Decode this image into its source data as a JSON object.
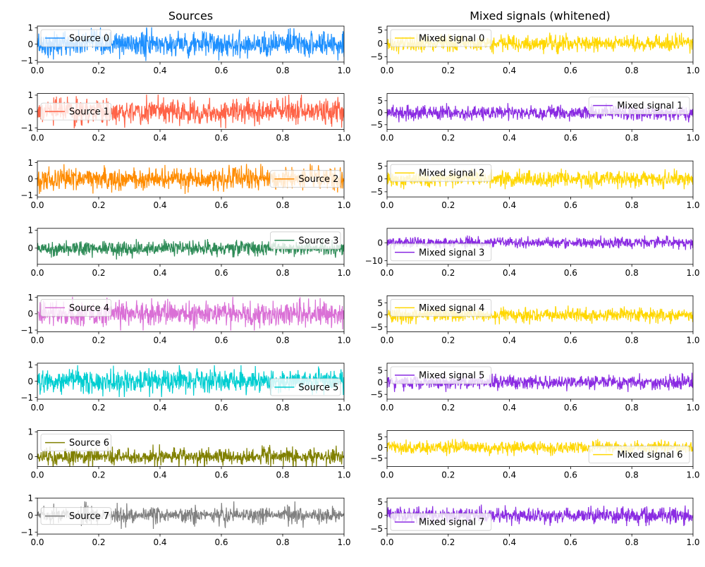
{
  "column_titles": [
    "Sources",
    "Mixed signals (whitened)"
  ],
  "chart_data": [
    {
      "type": "line",
      "title": "Sources",
      "panel": 0,
      "series": [
        {
          "name": "Source 0",
          "color": "#1e90ff",
          "amp": 0.9
        }
      ],
      "xlim": [
        0,
        1
      ],
      "ylim": [
        -1.1,
        1.1
      ],
      "xticks": [
        0.0,
        0.2,
        0.4,
        0.6,
        0.8,
        1.0
      ],
      "yticks": [
        -1,
        0,
        1
      ],
      "legend": "upper left"
    },
    {
      "type": "line",
      "panel": 1,
      "series": [
        {
          "name": "Source 1",
          "color": "#ff6347",
          "amp": 0.9
        }
      ],
      "xlim": [
        0,
        1
      ],
      "ylim": [
        -1.1,
        1.1
      ],
      "xticks": [
        0.0,
        0.2,
        0.4,
        0.6,
        0.8,
        1.0
      ],
      "yticks": [
        -1,
        0,
        1
      ],
      "legend": "center left"
    },
    {
      "type": "line",
      "panel": 2,
      "series": [
        {
          "name": "Source 2",
          "color": "#ff8c00",
          "amp": 0.8
        }
      ],
      "xlim": [
        0,
        1
      ],
      "ylim": [
        -1.1,
        1.1
      ],
      "xticks": [
        0.0,
        0.2,
        0.4,
        0.6,
        0.8,
        1.0
      ],
      "yticks": [
        -1,
        0,
        1
      ],
      "legend": "center right"
    },
    {
      "type": "line",
      "panel": 3,
      "series": [
        {
          "name": "Source 3",
          "color": "#2e8b57",
          "amp": 0.55
        }
      ],
      "xlim": [
        0,
        1
      ],
      "ylim": [
        -0.9,
        1.1
      ],
      "xticks": [
        0.0,
        0.2,
        0.4,
        0.6,
        0.8,
        1.0
      ],
      "yticks": [
        0,
        1
      ],
      "legend": "upper right"
    },
    {
      "type": "line",
      "panel": 4,
      "series": [
        {
          "name": "Source 4",
          "color": "#da70d6",
          "amp": 0.9
        }
      ],
      "xlim": [
        0,
        1
      ],
      "ylim": [
        -1.1,
        1.1
      ],
      "xticks": [
        0.0,
        0.2,
        0.4,
        0.6,
        0.8,
        1.0
      ],
      "yticks": [
        -1,
        0,
        1
      ],
      "legend": "upper left"
    },
    {
      "type": "line",
      "panel": 5,
      "series": [
        {
          "name": "Source 5",
          "color": "#00ced1",
          "amp": 0.85
        }
      ],
      "xlim": [
        0,
        1
      ],
      "ylim": [
        -1.1,
        1.1
      ],
      "xticks": [
        0.0,
        0.2,
        0.4,
        0.6,
        0.8,
        1.0
      ],
      "yticks": [
        -1,
        0,
        1
      ],
      "legend": "lower right"
    },
    {
      "type": "line",
      "panel": 6,
      "series": [
        {
          "name": "Source 6",
          "color": "#808000",
          "amp": 0.5
        }
      ],
      "xlim": [
        0,
        1
      ],
      "ylim": [
        -0.4,
        1.05
      ],
      "xticks": [
        0.0,
        0.2,
        0.4,
        0.6,
        0.8,
        1.0
      ],
      "yticks": [
        0,
        1
      ],
      "legend": "upper left"
    },
    {
      "type": "line",
      "panel": 7,
      "series": [
        {
          "name": "Source 7",
          "color": "#808080",
          "amp": 0.7
        }
      ],
      "xlim": [
        0,
        1
      ],
      "ylim": [
        -1.1,
        1.0
      ],
      "xticks": [
        0.0,
        0.2,
        0.4,
        0.6,
        0.8,
        1.0
      ],
      "yticks": [
        -1,
        0,
        1
      ],
      "legend": "center left"
    },
    {
      "type": "line",
      "title": "Mixed signals (whitened)",
      "panel": 8,
      "series": [
        {
          "name": "Mixed signal 0",
          "color": "#ffd700",
          "amp": 3.5
        }
      ],
      "xlim": [
        0,
        1
      ],
      "ylim": [
        -7,
        6.5
      ],
      "xticks": [
        0.0,
        0.2,
        0.4,
        0.6,
        0.8,
        1.0
      ],
      "yticks": [
        -5,
        0,
        5
      ],
      "legend": "upper left"
    },
    {
      "type": "line",
      "panel": 9,
      "series": [
        {
          "name": "Mixed signal 1",
          "color": "#8a2be2",
          "amp": 3.5
        }
      ],
      "xlim": [
        0,
        1
      ],
      "ylim": [
        -7,
        8
      ],
      "xticks": [
        0.0,
        0.2,
        0.4,
        0.6,
        0.8,
        1.0
      ],
      "yticks": [
        -5,
        0,
        5
      ],
      "legend": "upper right"
    },
    {
      "type": "line",
      "panel": 10,
      "series": [
        {
          "name": "Mixed signal 2",
          "color": "#ffd700",
          "amp": 3.5
        }
      ],
      "xlim": [
        0,
        1
      ],
      "ylim": [
        -7,
        7
      ],
      "xticks": [
        0.0,
        0.2,
        0.4,
        0.6,
        0.8,
        1.0
      ],
      "yticks": [
        -5,
        0,
        5
      ],
      "legend": "upper left"
    },
    {
      "type": "line",
      "panel": 11,
      "series": [
        {
          "name": "Mixed signal 3",
          "color": "#8a2be2",
          "amp": 3.5
        }
      ],
      "xlim": [
        0,
        1
      ],
      "ylim": [
        -12,
        8
      ],
      "xticks": [
        0.0,
        0.2,
        0.4,
        0.6,
        0.8,
        1.0
      ],
      "yticks": [
        -10,
        0
      ],
      "legend": "lower left"
    },
    {
      "type": "line",
      "panel": 12,
      "series": [
        {
          "name": "Mixed signal 4",
          "color": "#ffd700",
          "amp": 3.5
        }
      ],
      "xlim": [
        0,
        1
      ],
      "ylim": [
        -7,
        8
      ],
      "xticks": [
        0.0,
        0.2,
        0.4,
        0.6,
        0.8,
        1.0
      ],
      "yticks": [
        -5,
        0,
        5
      ],
      "legend": "upper left"
    },
    {
      "type": "line",
      "panel": 13,
      "series": [
        {
          "name": "Mixed signal 5",
          "color": "#8a2be2",
          "amp": 3.5
        }
      ],
      "xlim": [
        0,
        1
      ],
      "ylim": [
        -7,
        8
      ],
      "xticks": [
        0.0,
        0.2,
        0.4,
        0.6,
        0.8,
        1.0
      ],
      "yticks": [
        -5,
        0,
        5
      ],
      "legend": "upper left"
    },
    {
      "type": "line",
      "panel": 14,
      "series": [
        {
          "name": "Mixed signal 6",
          "color": "#ffd700",
          "amp": 3.5
        }
      ],
      "xlim": [
        0,
        1
      ],
      "ylim": [
        -9,
        8
      ],
      "xticks": [
        0.0,
        0.2,
        0.4,
        0.6,
        0.8,
        1.0
      ],
      "yticks": [
        -5,
        0,
        5
      ],
      "legend": "lower right"
    },
    {
      "type": "line",
      "panel": 15,
      "series": [
        {
          "name": "Mixed signal 7",
          "color": "#8a2be2",
          "amp": 3.5
        }
      ],
      "xlim": [
        0,
        1
      ],
      "ylim": [
        -7,
        6.5
      ],
      "xticks": [
        0.0,
        0.2,
        0.4,
        0.6,
        0.8,
        1.0
      ],
      "yticks": [
        -5,
        0,
        5
      ],
      "legend": "lower left"
    }
  ]
}
